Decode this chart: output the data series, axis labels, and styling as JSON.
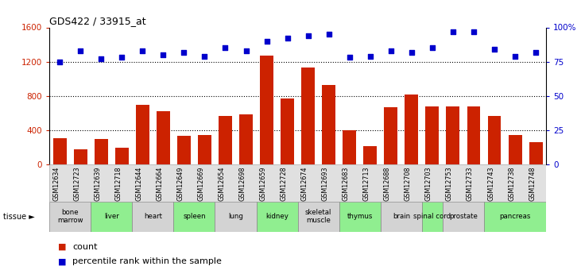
{
  "title": "GDS422 / 33915_at",
  "gsm_labels": [
    "GSM12634",
    "GSM12723",
    "GSM12639",
    "GSM12718",
    "GSM12644",
    "GSM12664",
    "GSM12649",
    "GSM12669",
    "GSM12654",
    "GSM12698",
    "GSM12659",
    "GSM12728",
    "GSM12674",
    "GSM12693",
    "GSM12683",
    "GSM12713",
    "GSM12688",
    "GSM12708",
    "GSM12703",
    "GSM12753",
    "GSM12733",
    "GSM12743",
    "GSM12738",
    "GSM12748"
  ],
  "bar_values": [
    310,
    175,
    300,
    195,
    700,
    620,
    330,
    340,
    570,
    580,
    1270,
    770,
    1130,
    930,
    400,
    210,
    670,
    820,
    680,
    680,
    680,
    570,
    340,
    260
  ],
  "dot_values": [
    75,
    83,
    77,
    78,
    83,
    80,
    82,
    79,
    85,
    83,
    90,
    92,
    94,
    95,
    78,
    79,
    83,
    82,
    85,
    97,
    97,
    84,
    79,
    82
  ],
  "tissues": [
    {
      "label": "bone\nmarrow",
      "start": 0,
      "end": 2,
      "color": "#d3d3d3"
    },
    {
      "label": "liver",
      "start": 2,
      "end": 4,
      "color": "#90ee90"
    },
    {
      "label": "heart",
      "start": 4,
      "end": 6,
      "color": "#d3d3d3"
    },
    {
      "label": "spleen",
      "start": 6,
      "end": 8,
      "color": "#90ee90"
    },
    {
      "label": "lung",
      "start": 8,
      "end": 10,
      "color": "#d3d3d3"
    },
    {
      "label": "kidney",
      "start": 10,
      "end": 12,
      "color": "#90ee90"
    },
    {
      "label": "skeletal\nmuscle",
      "start": 12,
      "end": 14,
      "color": "#d3d3d3"
    },
    {
      "label": "thymus",
      "start": 14,
      "end": 16,
      "color": "#90ee90"
    },
    {
      "label": "brain",
      "start": 16,
      "end": 18,
      "color": "#d3d3d3"
    },
    {
      "label": "spinal cord",
      "start": 18,
      "end": 19,
      "color": "#90ee90"
    },
    {
      "label": "prostate",
      "start": 19,
      "end": 21,
      "color": "#d3d3d3"
    },
    {
      "label": "pancreas",
      "start": 21,
      "end": 24,
      "color": "#90ee90"
    }
  ],
  "bar_color": "#cc2200",
  "dot_color": "#0000cc",
  "ylim_left": [
    0,
    1600
  ],
  "ylim_right": [
    0,
    100
  ],
  "yticks_left": [
    0,
    400,
    800,
    1200,
    1600
  ],
  "yticks_right": [
    0,
    25,
    50,
    75,
    100
  ],
  "yticklabels_right": [
    "0",
    "25",
    "50",
    "75",
    "100%"
  ],
  "grid_values": [
    400,
    800,
    1200
  ],
  "background_color": "#ffffff"
}
